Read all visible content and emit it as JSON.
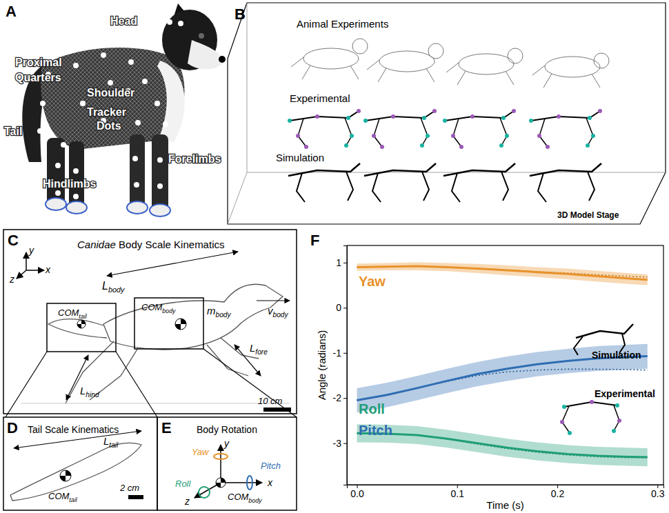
{
  "panels": {
    "A": {
      "letter": "A",
      "labels": {
        "head": "Head",
        "proximal_quarters": [
          "Proximal",
          "Quarters"
        ],
        "shoulder": "Shoulder",
        "tracker_dots": [
          "Tracker",
          "Dots"
        ],
        "tail": "Tail",
        "forelimbs": "Forelimbs",
        "hindlimbs": "Hindlimbs"
      }
    },
    "B": {
      "letter": "B",
      "labels": {
        "animal_experiments": "Animal Experiments",
        "experimental": "Experimental",
        "simulation": "Simulation",
        "stage": "3D Model Stage"
      }
    },
    "C": {
      "letter": "C",
      "title": {
        "italic": "Canidae",
        "rest": " Body Scale Kinematics"
      },
      "axes": {
        "y": "y",
        "x": "x",
        "z": "z"
      },
      "labels": {
        "l_body": {
          "main": "L",
          "sub": "body"
        },
        "com_tail": {
          "main": "COM",
          "sub": "tail"
        },
        "com_body": {
          "main": "COM",
          "sub": "body"
        },
        "m_body": {
          "main": "m",
          "sub": "body"
        },
        "v_body": {
          "main": "v",
          "sub": "body"
        },
        "l_fore": {
          "main": "L",
          "sub": "fore"
        },
        "l_hind": {
          "main": "L",
          "sub": "hind"
        }
      },
      "scale_bar": "10 cm"
    },
    "D": {
      "letter": "D",
      "title": "Tail Scale Kinematics",
      "labels": {
        "l_tail": {
          "main": "L",
          "sub": "tail"
        },
        "com_tail": {
          "main": "COM",
          "sub": "tail"
        }
      },
      "scale_bar": "2 cm"
    },
    "E": {
      "letter": "E",
      "title": "Body Rotation",
      "labels": {
        "yaw": "Yaw",
        "pitch": "Pitch",
        "roll": "Roll",
        "y": "y",
        "x": "x",
        "z": "z",
        "com_body": {
          "main": "COM",
          "sub": "body"
        }
      }
    },
    "F": {
      "letter": "F"
    }
  },
  "chart_data": {
    "type": "line",
    "xlabel": "Time (s)",
    "ylabel": "Angle (radians)",
    "x": [
      0,
      0.03,
      0.06,
      0.09,
      0.12,
      0.15,
      0.18,
      0.21,
      0.24,
      0.27,
      0.29
    ],
    "xlim": [
      -0.01,
      0.306
    ],
    "ylim": [
      -3.92,
      1.38
    ],
    "xticks": [
      {
        "value": 0,
        "label": "0.0"
      },
      0.1,
      0.2,
      0.3
    ],
    "yticks": [
      -3,
      -2,
      -1,
      0,
      1
    ],
    "grid": false,
    "annotations": [
      "Simulation",
      "Experimental"
    ],
    "series": [
      {
        "name": "Yaw",
        "color": "#e8922a",
        "line_style": "solid",
        "values": [
          0.9,
          0.91,
          0.92,
          0.9,
          0.87,
          0.83,
          0.79,
          0.75,
          0.7,
          0.65,
          0.62
        ],
        "lower": [
          0.82,
          0.83,
          0.83,
          0.81,
          0.77,
          0.72,
          0.68,
          0.63,
          0.58,
          0.53,
          0.5
        ],
        "upper": [
          0.98,
          0.99,
          1.01,
          0.99,
          0.97,
          0.94,
          0.9,
          0.87,
          0.82,
          0.77,
          0.74
        ],
        "experimental_values": [
          0.9,
          0.91,
          0.92,
          0.9,
          0.87,
          0.84,
          0.8,
          0.77,
          0.73,
          0.7,
          0.68
        ]
      },
      {
        "name": "Pitch",
        "color": "#2f6db3",
        "line_style": "solid",
        "values": [
          -2.05,
          -1.93,
          -1.78,
          -1.62,
          -1.47,
          -1.35,
          -1.25,
          -1.18,
          -1.12,
          -1.09,
          -1.07
        ],
        "lower": [
          -2.32,
          -2.2,
          -2.05,
          -1.89,
          -1.74,
          -1.62,
          -1.52,
          -1.45,
          -1.4,
          -1.37,
          -1.35
        ],
        "upper": [
          -1.78,
          -1.66,
          -1.51,
          -1.35,
          -1.2,
          -1.08,
          -0.98,
          -0.91,
          -0.85,
          -0.82,
          -0.8
        ],
        "experimental_values": [
          -2.05,
          -1.93,
          -1.78,
          -1.63,
          -1.5,
          -1.42,
          -1.38,
          -1.36,
          -1.36,
          -1.37,
          -1.38
        ]
      },
      {
        "name": "Roll",
        "color": "#1f9e78",
        "line_style": "solid",
        "values": [
          -2.78,
          -2.79,
          -2.82,
          -2.9,
          -3.0,
          -3.1,
          -3.18,
          -3.24,
          -3.28,
          -3.3,
          -3.31
        ],
        "lower": [
          -2.98,
          -2.99,
          -3.02,
          -3.1,
          -3.2,
          -3.3,
          -3.38,
          -3.44,
          -3.48,
          -3.5,
          -3.51
        ],
        "upper": [
          -2.58,
          -2.59,
          -2.62,
          -2.7,
          -2.8,
          -2.9,
          -2.98,
          -3.04,
          -3.08,
          -3.1,
          -3.11
        ],
        "experimental_values": [
          -2.78,
          -2.79,
          -2.82,
          -2.91,
          -3.02,
          -3.12,
          -3.2,
          -3.26,
          -3.3,
          -3.32,
          -3.32
        ]
      }
    ]
  }
}
